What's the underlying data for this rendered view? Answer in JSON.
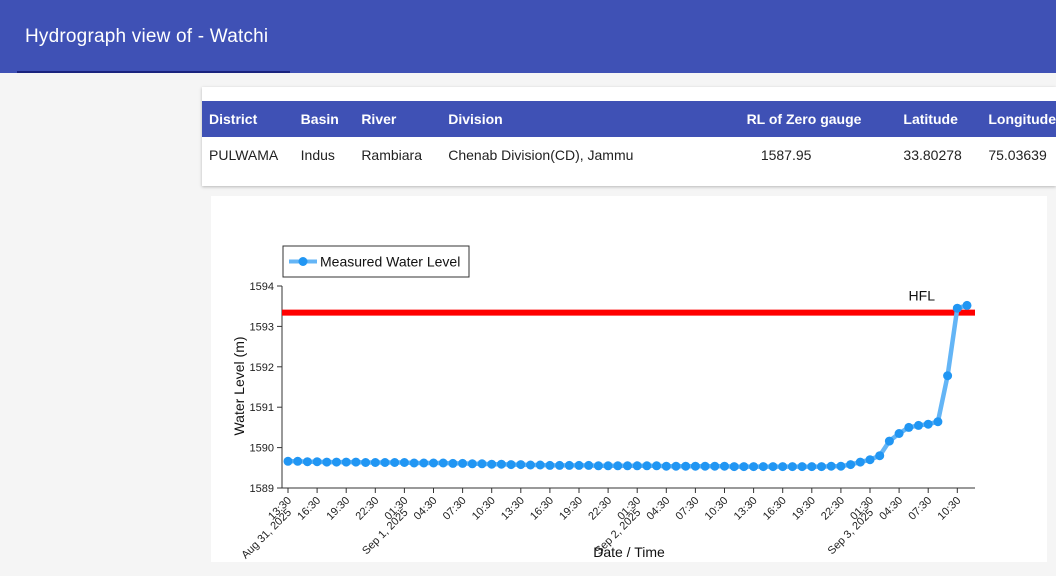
{
  "header": {
    "title": "Hydrograph view of - Watchi"
  },
  "info_table": {
    "columns": [
      "District",
      "Basin",
      "River",
      "Division",
      "RL of Zero gauge",
      "Latitude",
      "Longitude"
    ],
    "row": {
      "district": "PULWAMA",
      "basin": "Indus",
      "river": "Rambiara",
      "division": "Chenab Division(CD), Jammu",
      "rl_zero_gauge": "1587.95",
      "latitude": "33.80278",
      "longitude": "75.03639"
    }
  },
  "chart_data": {
    "type": "line",
    "xlabel": "Date / Time",
    "ylabel": "Water Level (m)",
    "ylim": [
      1589,
      1594
    ],
    "yticks": [
      1589,
      1590,
      1591,
      1592,
      1593,
      1594
    ],
    "x_start": "Aug 31, 2025 13:30",
    "x_step_hours": 1,
    "xticks": [
      {
        "label": "13:30",
        "sub": "Aug 31, 2025",
        "index": 0
      },
      {
        "label": "16:30",
        "index": 3
      },
      {
        "label": "19:30",
        "index": 6
      },
      {
        "label": "22:30",
        "index": 9
      },
      {
        "label": "01:30",
        "sub": "Sep 1, 2025",
        "index": 12
      },
      {
        "label": "04:30",
        "index": 15
      },
      {
        "label": "07:30",
        "index": 18
      },
      {
        "label": "10:30",
        "index": 21
      },
      {
        "label": "13:30",
        "index": 24
      },
      {
        "label": "16:30",
        "index": 27
      },
      {
        "label": "19:30",
        "index": 30
      },
      {
        "label": "22:30",
        "index": 33
      },
      {
        "label": "01:30",
        "sub": "Sep 2, 2025",
        "index": 36
      },
      {
        "label": "04:30",
        "index": 39
      },
      {
        "label": "07:30",
        "index": 42
      },
      {
        "label": "10:30",
        "index": 45
      },
      {
        "label": "13:30",
        "index": 48
      },
      {
        "label": "16:30",
        "index": 51
      },
      {
        "label": "19:30",
        "index": 54
      },
      {
        "label": "22:30",
        "index": 57
      },
      {
        "label": "01:30",
        "sub": "Sep 3, 2025",
        "index": 60
      },
      {
        "label": "04:30",
        "index": 63
      },
      {
        "label": "07:30",
        "index": 66
      },
      {
        "label": "10:30",
        "index": 69
      }
    ],
    "series": [
      {
        "name": "Measured Water Level",
        "color": "#2196f3",
        "line_color": "#64b5f6",
        "values": [
          1589.66,
          1589.66,
          1589.65,
          1589.65,
          1589.64,
          1589.64,
          1589.64,
          1589.64,
          1589.63,
          1589.63,
          1589.63,
          1589.63,
          1589.63,
          1589.62,
          1589.62,
          1589.62,
          1589.62,
          1589.61,
          1589.61,
          1589.6,
          1589.6,
          1589.59,
          1589.59,
          1589.58,
          1589.58,
          1589.57,
          1589.57,
          1589.56,
          1589.56,
          1589.56,
          1589.56,
          1589.56,
          1589.55,
          1589.55,
          1589.55,
          1589.55,
          1589.55,
          1589.55,
          1589.55,
          1589.54,
          1589.54,
          1589.54,
          1589.54,
          1589.54,
          1589.54,
          1589.54,
          1589.53,
          1589.53,
          1589.53,
          1589.53,
          1589.53,
          1589.53,
          1589.53,
          1589.53,
          1589.53,
          1589.53,
          1589.54,
          1589.54,
          1589.58,
          1589.64,
          1589.7,
          1589.8,
          1590.16,
          1590.35,
          1590.5,
          1590.55,
          1590.58,
          1590.64,
          1591.78,
          1593.45,
          1593.52
        ]
      }
    ],
    "reference_lines": [
      {
        "name": "HFL",
        "value": 1593.34,
        "color": "#ff0000"
      }
    ],
    "legend": {
      "position": "top-left"
    }
  }
}
